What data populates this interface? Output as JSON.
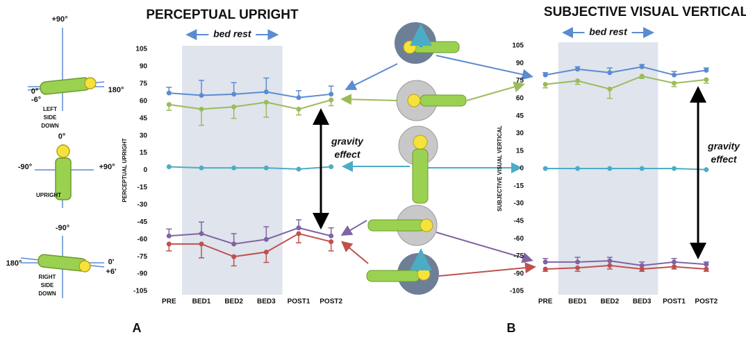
{
  "chart_data": [
    {
      "type": "line",
      "title": "PERCEPTUAL UPRIGHT",
      "y_label": "PERCEPTUAL UPRIGHT",
      "panel": "A",
      "bed_rest": "bed rest",
      "gravity_effect": [
        "gravity",
        "effect"
      ],
      "categories": [
        "PRE",
        "BED1",
        "BED2",
        "BED3",
        "POST1",
        "POST2"
      ],
      "ylim": [
        -105,
        105
      ],
      "yticks": [
        105,
        90,
        75,
        60,
        45,
        30,
        15,
        0,
        -15,
        -30,
        -45,
        -60,
        -75,
        -90,
        -105
      ],
      "grid": false,
      "series": [
        {
          "color": "#5b8bd0",
          "values": [
            67,
            65,
            66,
            68,
            63,
            66
          ],
          "errors": [
            5,
            13,
            10,
            12,
            6,
            7
          ],
          "error_dir": 1
        },
        {
          "color": "#9bbb59",
          "values": [
            57,
            53,
            55,
            59,
            53,
            61
          ],
          "errors": [
            5,
            14,
            10,
            13,
            5,
            5
          ],
          "error_dir": -1
        },
        {
          "color": "#4bacc6",
          "values": [
            3,
            2,
            2,
            2,
            1,
            3
          ]
        },
        {
          "color": "#8064a2",
          "values": [
            -57,
            -55,
            -64,
            -60,
            -50,
            -57
          ],
          "errors": [
            6,
            10,
            9,
            11,
            7,
            7
          ],
          "error_dir": 1
        },
        {
          "color": "#c0504d",
          "values": [
            -64,
            -64,
            -75,
            -71,
            -55,
            -62
          ],
          "errors": [
            6,
            12,
            8,
            9,
            8,
            8
          ],
          "error_dir": -1
        }
      ]
    },
    {
      "type": "line",
      "title": "SUBJECTIVE VISUAL VERTICAL",
      "y_label": "SUBJECTIVE VISUAL VERTICAL",
      "panel": "B",
      "bed_rest": "bed rest",
      "gravity_effect": [
        "gravity",
        "effect"
      ],
      "categories": [
        "PRE",
        "BED1",
        "BED2",
        "BED3",
        "POST1",
        "POST2"
      ],
      "ylim": [
        -105,
        105
      ],
      "yticks": [
        105,
        90,
        75,
        60,
        45,
        30,
        15,
        0,
        -15,
        -30,
        -45,
        -60,
        -75,
        -90,
        -105
      ],
      "grid": false,
      "series": [
        {
          "color": "#5b8bd0",
          "values": [
            80,
            85,
            82,
            87,
            80,
            84
          ],
          "errors": [
            2,
            2,
            4,
            2,
            3,
            2
          ],
          "error_dir": 1
        },
        {
          "color": "#9bbb59",
          "values": [
            72,
            75,
            68,
            79,
            73,
            76
          ],
          "errors": [
            3,
            3,
            8,
            2,
            3,
            3
          ],
          "error_dir": -1
        },
        {
          "color": "#4bacc6",
          "values": [
            0,
            0,
            0,
            0,
            0,
            -1
          ]
        },
        {
          "color": "#8064a2",
          "values": [
            -80,
            -80,
            -79,
            -83,
            -80,
            -82
          ],
          "errors": [
            3,
            4,
            3,
            3,
            3,
            2
          ],
          "error_dir": 1
        },
        {
          "color": "#c0504d",
          "values": [
            -86,
            -85,
            -83,
            -86,
            -84,
            -86
          ],
          "errors": [
            2,
            3,
            3,
            2,
            2,
            2
          ],
          "error_dir": -1
        }
      ]
    }
  ],
  "orientations": {
    "left_side_down": {
      "top": "+90°",
      "left": "0°",
      "left2": "-6°",
      "right": "180°",
      "label": [
        "LEFT",
        "SIDE",
        "DOWN"
      ]
    },
    "upright": {
      "top": "0°",
      "left": "-90°",
      "right": "+90°",
      "label": "UPRIGHT"
    },
    "right_side_down": {
      "top": "-90°",
      "left": "180°",
      "right": "0'",
      "right2": "+6'",
      "label": [
        "RIGHT",
        "SIDE",
        "DOWN"
      ]
    }
  }
}
